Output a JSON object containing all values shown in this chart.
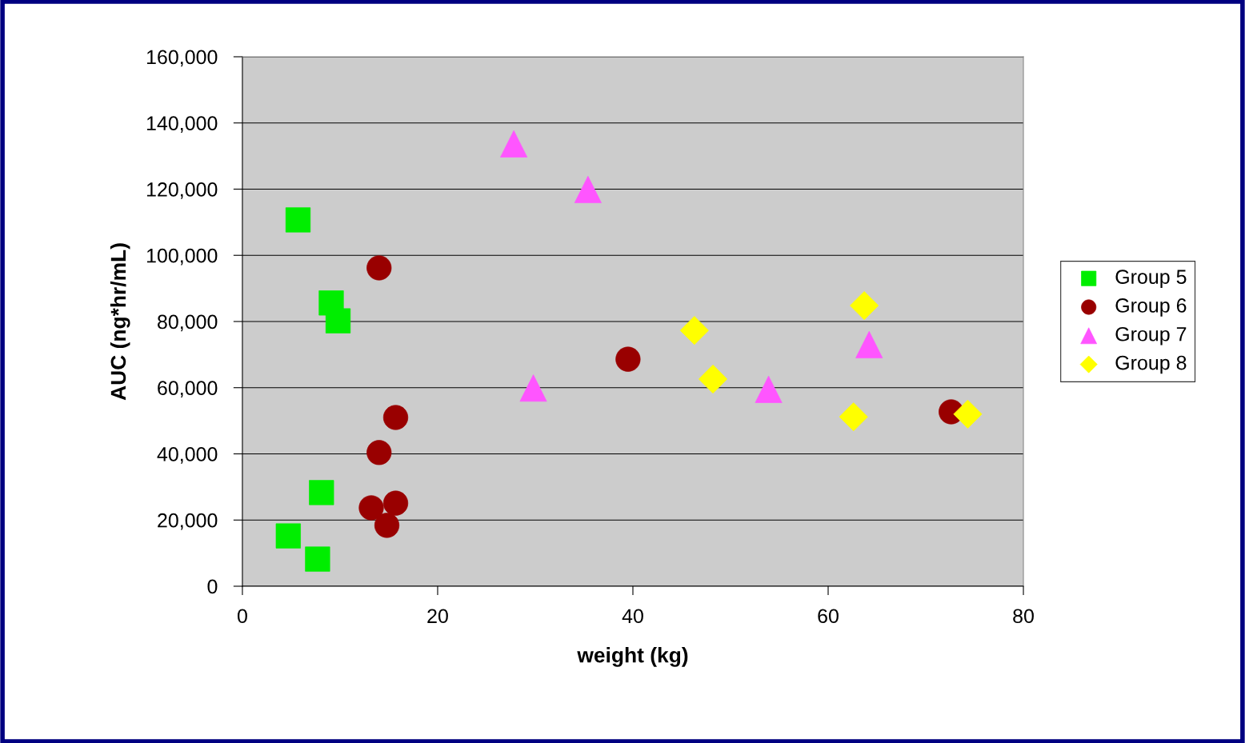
{
  "chart_data": {
    "type": "scatter",
    "xlabel": "weight (kg)",
    "ylabel": "AUC (ng*hr/mL)",
    "xlim": [
      0,
      80
    ],
    "xticks": [
      0,
      20,
      40,
      60,
      80
    ],
    "ylim": [
      0,
      160000
    ],
    "yticks": [
      {
        "value": 0,
        "label": "0"
      },
      {
        "value": 20000,
        "label": "20,000"
      },
      {
        "value": 40000,
        "label": "40,000"
      },
      {
        "value": 60000,
        "label": "60,000"
      },
      {
        "value": 80000,
        "label": "80,000"
      },
      {
        "value": 100000,
        "label": "100,000"
      },
      {
        "value": 120000,
        "label": "120,000"
      },
      {
        "value": 140000,
        "label": "140,000"
      },
      {
        "value": 160000,
        "label": "160,000"
      }
    ],
    "grid": "y",
    "legend": "right",
    "series": [
      {
        "name": "Group 5",
        "color": "#00ee00",
        "marker": "square",
        "x": [
          5.7,
          9.1,
          9.8,
          8.1,
          4.7,
          7.7
        ],
        "values": [
          110700,
          85600,
          80200,
          28300,
          15200,
          8200
        ]
      },
      {
        "name": "Group 6",
        "color": "#990000",
        "marker": "circle",
        "x": [
          14.0,
          39.5,
          15.7,
          14.0,
          13.2,
          15.7,
          14.8,
          72.6
        ],
        "values": [
          96200,
          68600,
          51000,
          40400,
          23700,
          25100,
          18400,
          52700
        ]
      },
      {
        "name": "Group 7",
        "color": "#ff55ff",
        "marker": "triangle",
        "x": [
          27.8,
          35.4,
          29.8,
          53.9,
          64.2
        ],
        "values": [
          133700,
          119900,
          59900,
          59500,
          73000
        ]
      },
      {
        "name": "Group 8",
        "color": "#ffff00",
        "marker": "diamond",
        "x": [
          46.3,
          48.2,
          63.7,
          62.6,
          74.3
        ],
        "values": [
          77300,
          62600,
          84800,
          51200,
          52000
        ]
      }
    ]
  }
}
